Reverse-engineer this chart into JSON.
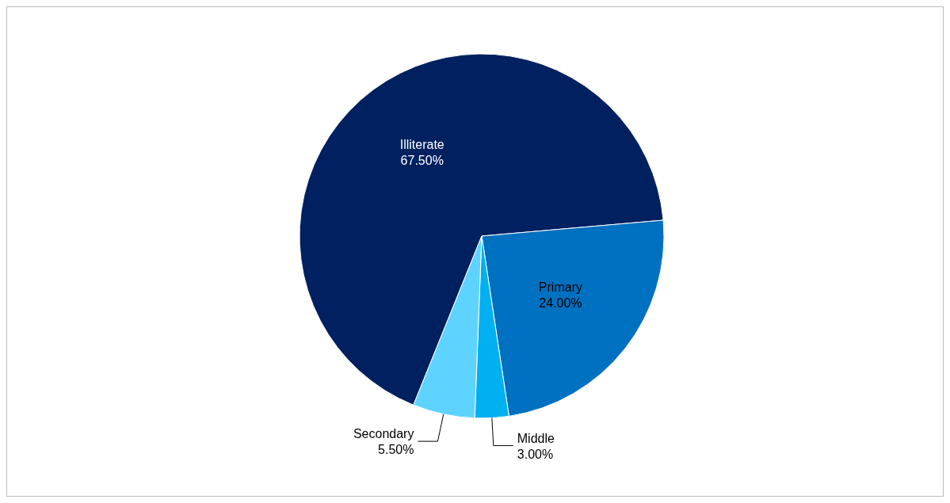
{
  "chart_data": {
    "type": "pie",
    "categories": [
      "Illiterate",
      "Primary",
      "Middle",
      "Secondary"
    ],
    "values": [
      67.5,
      24,
      3,
      5.5
    ],
    "colors": [
      "#002060",
      "#0070c0",
      "#00b0f0",
      "#5fd3ff"
    ],
    "value_labels": [
      "67.50%",
      "24.00%",
      "3.00%",
      "5.50%"
    ]
  }
}
